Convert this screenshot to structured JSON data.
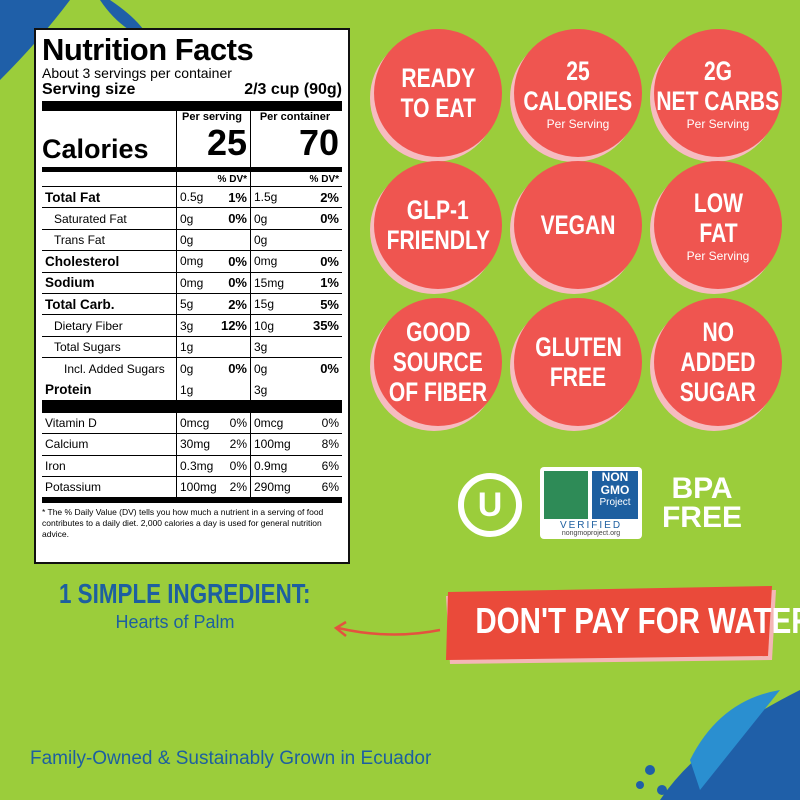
{
  "nutrition": {
    "title": "Nutrition Facts",
    "servings": "About 3 servings per container",
    "serving_label": "Serving size",
    "serving_value": "2/3 cup (90g)",
    "column_heads": [
      "Per serving",
      "Per container"
    ],
    "calories_label": "Calories",
    "calories": [
      "25",
      "70"
    ],
    "dv_head": "% DV*",
    "rows": [
      [
        "Total Fat",
        "0.5g",
        "1%",
        "1.5g",
        "2%"
      ],
      [
        "Saturated Fat",
        "0g",
        "0%",
        "0g",
        "0%"
      ],
      [
        "Trans Fat",
        "0g",
        "",
        "0g",
        ""
      ],
      [
        "Cholesterol",
        "0mg",
        "0%",
        "0mg",
        "0%"
      ],
      [
        "Sodium",
        "0mg",
        "0%",
        "15mg",
        "1%"
      ],
      [
        "Total Carb.",
        "5g",
        "2%",
        "15g",
        "5%"
      ],
      [
        "Dietary Fiber",
        "3g",
        "12%",
        "10g",
        "35%"
      ],
      [
        "Total Sugars",
        "1g",
        "",
        "3g",
        ""
      ],
      [
        "Incl. Added Sugars",
        "0g",
        "0%",
        "0g",
        "0%"
      ],
      [
        "Protein",
        "1g",
        "",
        "3g",
        ""
      ]
    ],
    "vitamins": [
      [
        "Vitamin D",
        "0mcg",
        "0%",
        "0mcg",
        "0%"
      ],
      [
        "Calcium",
        "30mg",
        "2%",
        "100mg",
        "8%"
      ],
      [
        "Iron",
        "0.3mg",
        "0%",
        "0.9mg",
        "6%"
      ],
      [
        "Potassium",
        "100mg",
        "2%",
        "290mg",
        "6%"
      ]
    ],
    "footnote": "* The % Daily Value (DV) tells you how much a nutrient in a serving of food contributes to a daily diet. 2,000 calories a day is used for general nutrition advice."
  },
  "badges": [
    {
      "lines": [
        "READY",
        "TO EAT"
      ]
    },
    {
      "lines": [
        "25",
        "CALORIES"
      ],
      "sub": "Per Serving"
    },
    {
      "lines": [
        "2G",
        "NET CARBS"
      ],
      "sub": "Per Serving"
    },
    {
      "lines": [
        "GLP-1",
        "FRIENDLY"
      ]
    },
    {
      "lines": [
        "VEGAN"
      ]
    },
    {
      "lines": [
        "LOW",
        "FAT"
      ],
      "sub": "Per Serving"
    },
    {
      "lines": [
        "GOOD",
        "SOURCE",
        "OF FIBER"
      ]
    },
    {
      "lines": [
        "GLUTEN",
        "FREE"
      ]
    },
    {
      "lines": [
        "NO",
        "ADDED",
        "SUGAR"
      ]
    }
  ],
  "logos": {
    "kosher": "U",
    "nongmo": [
      "NON",
      "GMO",
      "Project",
      "VERIFIED",
      "nongmoproject.org"
    ],
    "bpa": [
      "BPA",
      "FREE"
    ]
  },
  "ingredient": {
    "heading": "1 SIMPLE INGREDIENT:",
    "name": "Hearts of Palm"
  },
  "banner": "DON'T PAY FOR WATER!",
  "footer": "Family-Owned & Sustainably Grown in Ecuador"
}
